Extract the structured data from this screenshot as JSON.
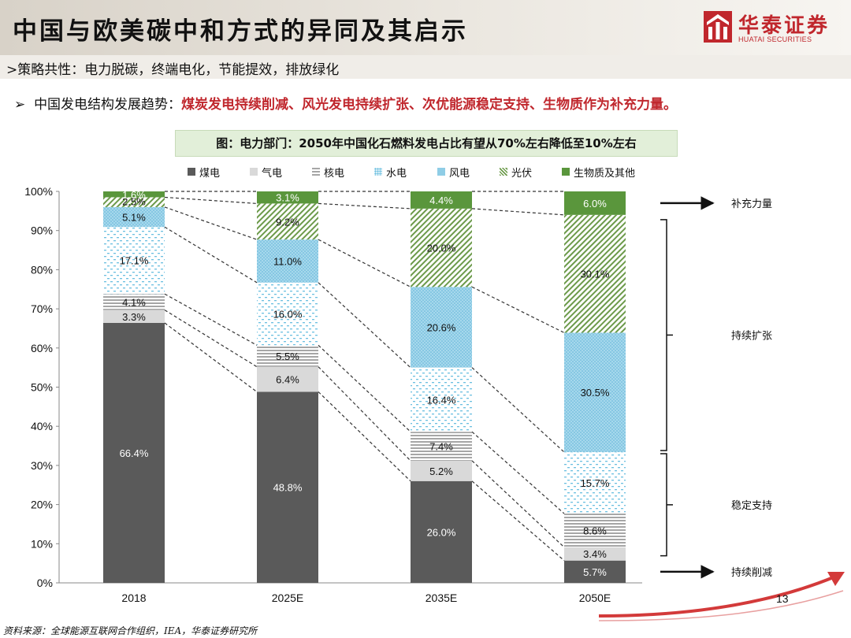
{
  "header": {
    "title": "中国与欧美碳中和方式的异同及其启示",
    "logo_cn": "华泰证券",
    "logo_en": "HUATAI SECURITIES"
  },
  "subline": ">策略共性：电力脱碳，终端电化，节能提效，排放绿化",
  "bullet": {
    "prefix": "中国发电结构发展趋势：",
    "highlight": "煤炭发电持续削减、风光发电持续扩张、次优能源稳定支持、生物质作为补充力量。"
  },
  "figure_title": "图：电力部门：2050年中国化石燃料发电占比有望从70%左右降低至10%左右",
  "colors": {
    "coal": "#5a5a5a",
    "gas": "#d9d9d9",
    "nuclear": "#a6a6a6",
    "hydro": "#9ad3e8",
    "wind": "#8fcde6",
    "solar": "#6c9a4a",
    "bio": "#5a963c",
    "accent_red": "#c0272d"
  },
  "chart_data": {
    "type": "bar",
    "stacked": true,
    "categories": [
      "2018",
      "2025E",
      "2035E",
      "2050E"
    ],
    "series": [
      {
        "name": "煤电",
        "key": "coal",
        "values": [
          66.4,
          48.8,
          26.0,
          5.7
        ],
        "labels": [
          "66.4%",
          "48.8%",
          "26.0%",
          "5.7%"
        ]
      },
      {
        "name": "气电",
        "key": "gas",
        "values": [
          3.3,
          6.4,
          5.2,
          3.4
        ],
        "labels": [
          "3.3%",
          "6.4%",
          "5.2%",
          "3.4%"
        ]
      },
      {
        "name": "核电",
        "key": "nuclear",
        "values": [
          4.1,
          5.5,
          7.4,
          8.6
        ],
        "labels": [
          "4.1%",
          "5.5%",
          "7.4%",
          "8.6%"
        ]
      },
      {
        "name": "水电",
        "key": "hydro",
        "values": [
          17.1,
          16.0,
          16.4,
          15.7
        ],
        "labels": [
          "17.1%",
          "16.0%",
          "16.4%",
          "15.7%"
        ]
      },
      {
        "name": "风电",
        "key": "wind",
        "values": [
          5.1,
          11.0,
          20.6,
          30.5
        ],
        "labels": [
          "5.1%",
          "11.0%",
          "20.6%",
          "30.5%"
        ]
      },
      {
        "name": "光伏",
        "key": "solar",
        "values": [
          2.5,
          9.2,
          20.0,
          30.1
        ],
        "labels": [
          "2.5%",
          "9.2%",
          "20.0%",
          "30.1%"
        ]
      },
      {
        "name": "生物质及其他",
        "key": "bio",
        "values": [
          1.6,
          3.1,
          4.4,
          6.0
        ],
        "labels": [
          "1.6%",
          "3.1%",
          "4.4%",
          "6.0%"
        ]
      }
    ],
    "ylim": [
      0,
      100
    ],
    "yticks": [
      "0%",
      "10%",
      "20%",
      "30%",
      "40%",
      "50%",
      "60%",
      "70%",
      "80%",
      "90%",
      "100%"
    ],
    "legend_position": "top",
    "annotations": [
      "补充力量",
      "持续扩张",
      "稳定支持",
      "持续削减"
    ]
  },
  "page_number": "13",
  "source": "资料来源：全球能源互联网合作组织，IEA，华泰证券研究所"
}
